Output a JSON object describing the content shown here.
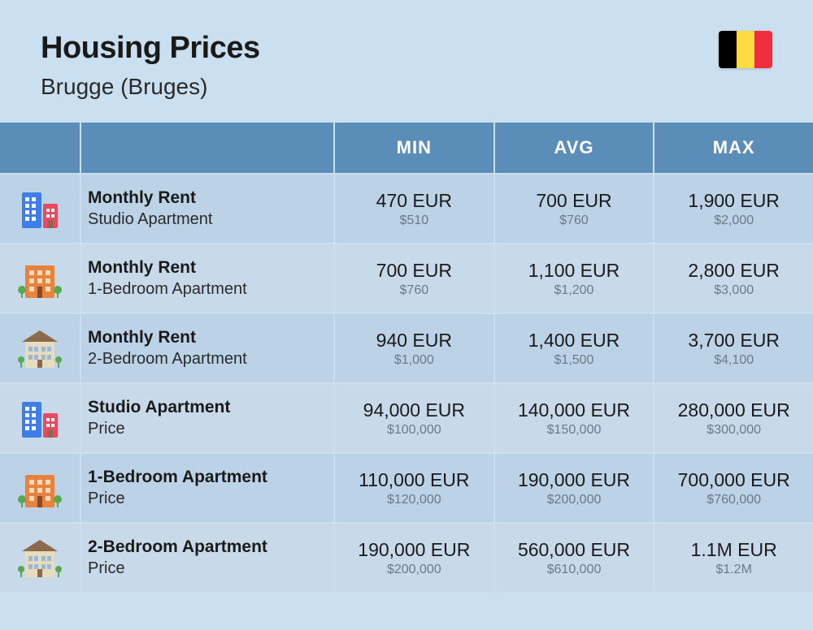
{
  "header": {
    "title": "Housing Prices",
    "subtitle": "Brugge (Bruges)"
  },
  "flag": {
    "stripe1": "#000000",
    "stripe2": "#fedb41",
    "stripe3": "#ed2f3e"
  },
  "columns": {
    "min": "MIN",
    "avg": "AVG",
    "max": "MAX"
  },
  "rows": [
    {
      "icon": "studio",
      "label_title": "Monthly Rent",
      "label_sub": "Studio Apartment",
      "min_primary": "470 EUR",
      "min_secondary": "$510",
      "avg_primary": "700 EUR",
      "avg_secondary": "$760",
      "max_primary": "1,900 EUR",
      "max_secondary": "$2,000"
    },
    {
      "icon": "onebed",
      "label_title": "Monthly Rent",
      "label_sub": "1-Bedroom Apartment",
      "min_primary": "700 EUR",
      "min_secondary": "$760",
      "avg_primary": "1,100 EUR",
      "avg_secondary": "$1,200",
      "max_primary": "2,800 EUR",
      "max_secondary": "$3,000"
    },
    {
      "icon": "twobed",
      "label_title": "Monthly Rent",
      "label_sub": "2-Bedroom Apartment",
      "min_primary": "940 EUR",
      "min_secondary": "$1,000",
      "avg_primary": "1,400 EUR",
      "avg_secondary": "$1,500",
      "max_primary": "3,700 EUR",
      "max_secondary": "$4,100"
    },
    {
      "icon": "studio",
      "label_title": "Studio Apartment",
      "label_sub": "Price",
      "min_primary": "94,000 EUR",
      "min_secondary": "$100,000",
      "avg_primary": "140,000 EUR",
      "avg_secondary": "$150,000",
      "max_primary": "280,000 EUR",
      "max_secondary": "$300,000"
    },
    {
      "icon": "onebed",
      "label_title": "1-Bedroom Apartment",
      "label_sub": "Price",
      "min_primary": "110,000 EUR",
      "min_secondary": "$120,000",
      "avg_primary": "190,000 EUR",
      "avg_secondary": "$200,000",
      "max_primary": "700,000 EUR",
      "max_secondary": "$760,000"
    },
    {
      "icon": "twobed",
      "label_title": "2-Bedroom Apartment",
      "label_sub": "Price",
      "min_primary": "190,000 EUR",
      "min_secondary": "$200,000",
      "avg_primary": "560,000 EUR",
      "avg_secondary": "$610,000",
      "max_primary": "1.1M EUR",
      "max_secondary": "$1.2M"
    }
  ],
  "styling": {
    "background": "#cadff0",
    "header_bg": "#5a8db8",
    "row_odd_bg": "#bcd2e6",
    "row_even_bg": "#c8daea",
    "text_primary": "#1a1a1a",
    "text_secondary": "#6a7a88",
    "gap": 2,
    "title_fontsize": 38,
    "subtitle_fontsize": 28,
    "header_fontsize": 22,
    "label_title_fontsize": 21,
    "label_sub_fontsize": 20,
    "val_primary_fontsize": 23,
    "val_secondary_fontsize": 16,
    "grid_columns": "98px 310px 1fr 1fr 1fr"
  },
  "icons": {
    "studio": {
      "type": "two-towers",
      "colors": [
        "#3f7ee8",
        "#e84a5f"
      ]
    },
    "onebed": {
      "type": "mid-rise",
      "colors": [
        "#e8833f",
        "#5aa852"
      ]
    },
    "twobed": {
      "type": "house",
      "colors": [
        "#d8c8a8",
        "#8a6a4a"
      ]
    }
  }
}
